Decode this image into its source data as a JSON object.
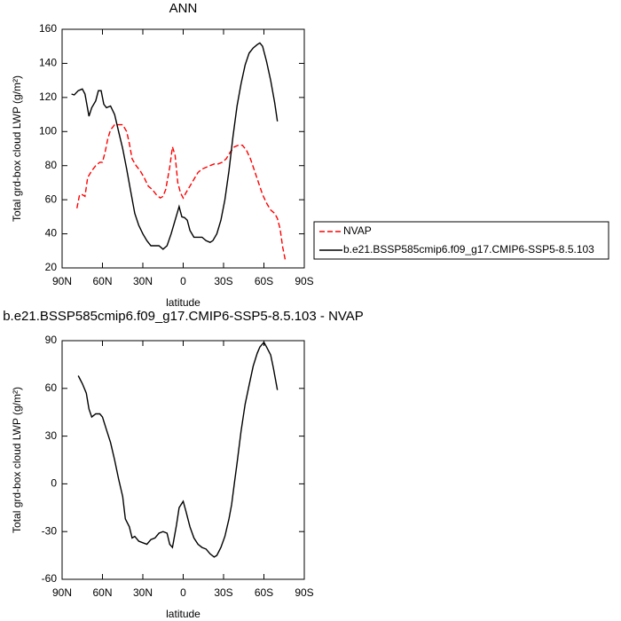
{
  "chart_data": [
    {
      "type": "line",
      "title": "ANN",
      "xlabel": "latitude",
      "ylabel": "Total grd-box cloud LWP (g/m²)",
      "xlim": [
        90,
        -90
      ],
      "xticks": [
        {
          "value": 90,
          "label": "90N"
        },
        {
          "value": 60,
          "label": "60N"
        },
        {
          "value": 30,
          "label": "30N"
        },
        0,
        {
          "value": -30,
          "label": "30S"
        },
        {
          "value": -60,
          "label": "60S"
        },
        {
          "value": -90,
          "label": "90S"
        }
      ],
      "ylim": [
        20,
        160
      ],
      "yticks": [
        20,
        40,
        60,
        80,
        100,
        120,
        140,
        160
      ],
      "legend": "right",
      "series": [
        {
          "name": "NVAP",
          "color": "#ff0000",
          "style": "dashed",
          "x": [
            79,
            77,
            75,
            73,
            71,
            68,
            65,
            62,
            60,
            58,
            56,
            54,
            51,
            48,
            45,
            42,
            40,
            38,
            35,
            32,
            29,
            26,
            23,
            20,
            17,
            15,
            13,
            10,
            8,
            6,
            4,
            2,
            0,
            -2,
            -5,
            -8,
            -11,
            -14,
            -17,
            -20,
            -23,
            -26,
            -29,
            -32,
            -35,
            -38,
            -41,
            -44,
            -47,
            -50,
            -53,
            -56,
            -59,
            -62,
            -65,
            -68,
            -70,
            -72,
            -74,
            -76
          ],
          "values": [
            55,
            63,
            63,
            62,
            73,
            77,
            80,
            82,
            82,
            88,
            96,
            101,
            104,
            104,
            104,
            100,
            93,
            84,
            80,
            77,
            73,
            68,
            66,
            63,
            61,
            62,
            66,
            79,
            91,
            86,
            70,
            64,
            61,
            64,
            68,
            72,
            76,
            78,
            79,
            80,
            81,
            81,
            82,
            84,
            88,
            91,
            92,
            92,
            89,
            84,
            77,
            70,
            63,
            58,
            54,
            52,
            49,
            43,
            32,
            24
          ]
        },
        {
          "name": "b.e21.BSSP585cmip6.f09_g17.CMIP6-SSP5-8.5.103",
          "color": "#000000",
          "style": "solid",
          "x": [
            83,
            81,
            78,
            75,
            73,
            70,
            68,
            65,
            63,
            61,
            59,
            57,
            54,
            51,
            48,
            45,
            42,
            39,
            36,
            33,
            30,
            27,
            24,
            21,
            18,
            15,
            12,
            9,
            6,
            3,
            1,
            -1,
            -3,
            -5,
            -8,
            -11,
            -14,
            -17,
            -20,
            -22,
            -25,
            -28,
            -31,
            -34,
            -37,
            -40,
            -43,
            -46,
            -49,
            -52,
            -55,
            -57,
            -59,
            -62,
            -65,
            -68,
            -70
          ],
          "values": [
            122,
            121.5,
            124,
            125,
            122,
            109,
            114,
            118,
            124,
            124,
            116,
            114,
            115,
            110,
            100,
            90,
            78,
            65,
            52,
            45,
            40,
            36,
            33,
            33,
            33,
            31,
            33,
            40,
            48,
            56,
            50,
            49.5,
            48,
            42,
            38,
            38,
            38,
            36,
            35,
            36,
            40,
            48,
            60,
            77,
            97,
            115,
            128,
            139,
            146,
            149,
            151,
            152,
            150,
            141,
            130,
            117,
            106
          ]
        }
      ]
    },
    {
      "type": "line",
      "title": "b.e21.BSSP585cmip6.f09_g17.CMIP6-SSP5-8.5.103 - NVAP",
      "xlabel": "latitude",
      "ylabel": "Total grd-box cloud LWP (g/m²)",
      "xlim": [
        90,
        -90
      ],
      "xticks": [
        {
          "value": 90,
          "label": "90N"
        },
        {
          "value": 60,
          "label": "60N"
        },
        {
          "value": 30,
          "label": "30N"
        },
        0,
        {
          "value": -30,
          "label": "30S"
        },
        {
          "value": -60,
          "label": "60S"
        },
        {
          "value": -90,
          "label": "90S"
        }
      ],
      "ylim": [
        -60,
        90
      ],
      "yticks": [
        -60,
        -30,
        0,
        30,
        60,
        90
      ],
      "series": [
        {
          "color": "#000000",
          "style": "solid",
          "x": [
            78,
            75,
            72,
            70,
            68,
            65,
            62,
            60,
            57,
            54,
            51,
            48,
            45,
            43,
            40,
            38,
            36,
            33,
            30,
            27,
            24,
            21,
            18,
            15,
            12,
            10,
            8,
            5,
            3,
            0,
            -2,
            -5,
            -8,
            -11,
            -14,
            -17,
            -20,
            -23,
            -25,
            -28,
            -31,
            -34,
            -36,
            -38,
            -40,
            -43,
            -46,
            -49,
            -52,
            -55,
            -57,
            -60,
            -62,
            -65,
            -67,
            -70
          ],
          "values": [
            68,
            63,
            57,
            47,
            42,
            44,
            44,
            42,
            34,
            26,
            15,
            3,
            -8,
            -22,
            -27,
            -34,
            -33,
            -36,
            -37,
            -38,
            -35,
            -34,
            -31,
            -30,
            -31,
            -38,
            -40,
            -26,
            -15,
            -11,
            -17,
            -27,
            -34,
            -38,
            -40,
            -41,
            -44,
            -46,
            -45,
            -40,
            -33,
            -22,
            -13,
            0,
            13,
            33,
            50,
            62,
            74,
            82,
            86,
            89,
            86,
            81,
            73,
            59
          ]
        }
      ]
    }
  ]
}
